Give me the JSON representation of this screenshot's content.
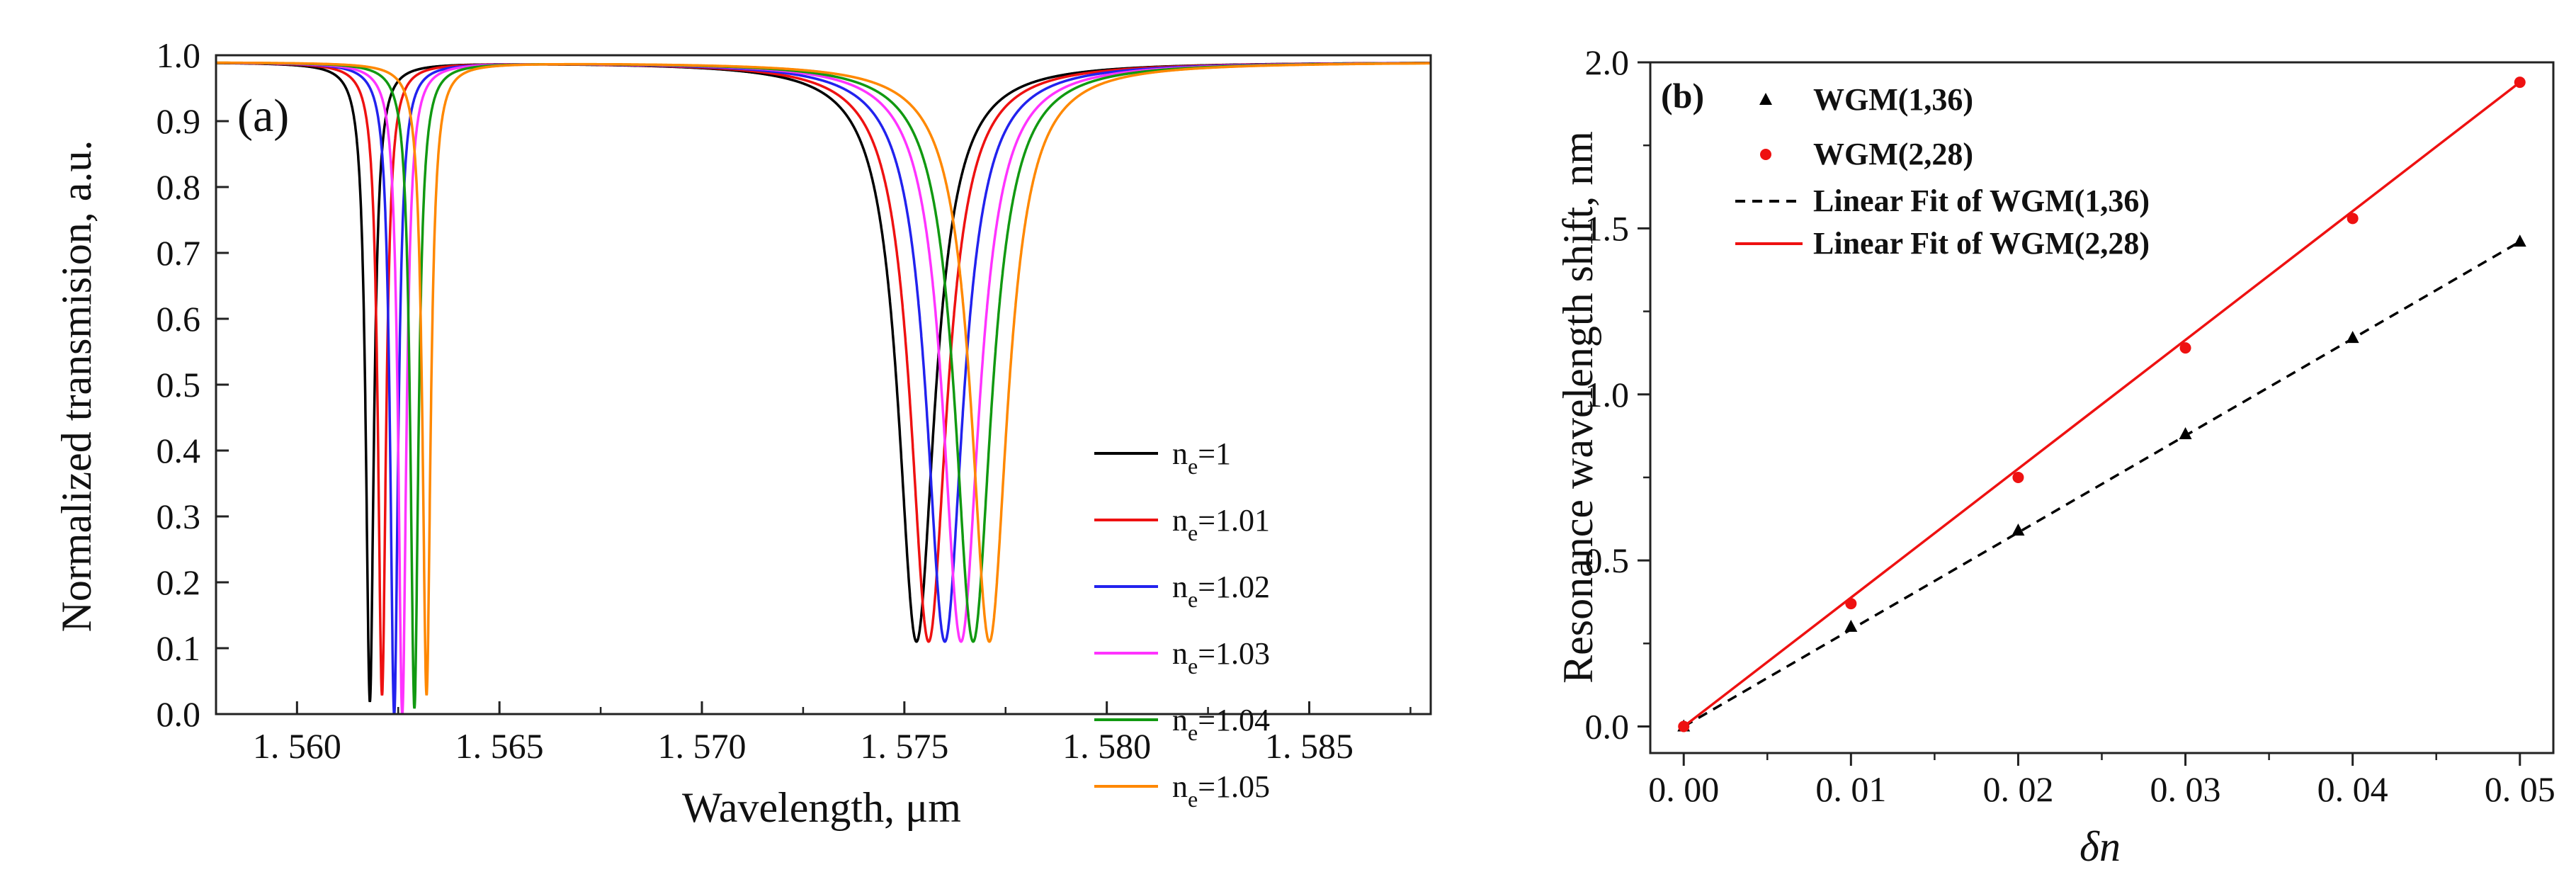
{
  "chart_data": [
    {
      "type": "line",
      "panel_label": "(a)",
      "xlabel": "Wavelength,   μm",
      "ylabel": "Normalized transmision, a.u.",
      "xlim": [
        1.558,
        1.588
      ],
      "ylim": [
        0.0,
        1.0
      ],
      "x_ticks": [
        {
          "value": 1.56,
          "label": "1. 560"
        },
        {
          "value": 1.565,
          "label": "1. 565"
        },
        {
          "value": 1.57,
          "label": "1. 570"
        },
        {
          "value": 1.575,
          "label": "1. 575"
        },
        {
          "value": 1.58,
          "label": "1. 580"
        },
        {
          "value": 1.585,
          "label": "1. 585"
        }
      ],
      "y_ticks": [
        {
          "value": 0.0,
          "label": "0.0"
        },
        {
          "value": 0.1,
          "label": "0.1"
        },
        {
          "value": 0.2,
          "label": "0.2"
        },
        {
          "value": 0.3,
          "label": "0.3"
        },
        {
          "value": 0.4,
          "label": "0.4"
        },
        {
          "value": 0.5,
          "label": "0.5"
        },
        {
          "value": 0.6,
          "label": "0.6"
        },
        {
          "value": 0.7,
          "label": "0.7"
        },
        {
          "value": 0.8,
          "label": "0.8"
        },
        {
          "value": 0.9,
          "label": "0.9"
        },
        {
          "value": 1.0,
          "label": "1.0"
        }
      ],
      "legend_position": "right-middle",
      "series": [
        {
          "label_base": "n",
          "label_sub": "e",
          "label_rest": "=1",
          "color": "#000000",
          "dips": [
            {
              "center": 1.5618,
              "hwhm": 0.00012,
              "min": 0.02
            },
            {
              "center": 1.5753,
              "hwhm": 0.00055,
              "min": 0.11
            }
          ]
        },
        {
          "label_base": "n",
          "label_sub": "e",
          "label_rest": "=1.01",
          "color": "#ee1111",
          "dips": [
            {
              "center": 1.5621,
              "hwhm": 0.00012,
              "min": 0.03
            },
            {
              "center": 1.5756,
              "hwhm": 0.00055,
              "min": 0.11
            }
          ]
        },
        {
          "label_base": "n",
          "label_sub": "e",
          "label_rest": "=1.02",
          "color": "#2222ee",
          "dips": [
            {
              "center": 1.5624,
              "hwhm": 0.00012,
              "min": 0.0
            },
            {
              "center": 1.576,
              "hwhm": 0.00055,
              "min": 0.11
            }
          ]
        },
        {
          "label_base": "n",
          "label_sub": "e",
          "label_rest": "=1.03",
          "color": "#ff33ff",
          "dips": [
            {
              "center": 1.5626,
              "hwhm": 0.00012,
              "min": 0.0
            },
            {
              "center": 1.5764,
              "hwhm": 0.00055,
              "min": 0.11
            }
          ]
        },
        {
          "label_base": "n",
          "label_sub": "e",
          "label_rest": "=1.04",
          "color": "#119911",
          "dips": [
            {
              "center": 1.5629,
              "hwhm": 0.00012,
              "min": 0.01
            },
            {
              "center": 1.5767,
              "hwhm": 0.00055,
              "min": 0.11
            }
          ]
        },
        {
          "label_base": "n",
          "label_sub": "e",
          "label_rest": "=1.05",
          "color": "#ff8800",
          "dips": [
            {
              "center": 1.5632,
              "hwhm": 0.00012,
              "min": 0.03
            },
            {
              "center": 1.5771,
              "hwhm": 0.00055,
              "min": 0.11
            }
          ]
        }
      ]
    },
    {
      "type": "scatter",
      "panel_label": "(b)",
      "xlabel": "δn",
      "ylabel": "Resonance wavelength shift, nm",
      "xlim": [
        -0.002,
        0.052
      ],
      "ylim": [
        -0.08,
        2.0
      ],
      "x_ticks": [
        {
          "value": 0.0,
          "label": "0. 00"
        },
        {
          "value": 0.01,
          "label": "0. 01"
        },
        {
          "value": 0.02,
          "label": "0. 02"
        },
        {
          "value": 0.03,
          "label": "0. 03"
        },
        {
          "value": 0.04,
          "label": "0. 04"
        },
        {
          "value": 0.05,
          "label": "0. 05"
        }
      ],
      "y_ticks": [
        {
          "value": 0.0,
          "label": "0.0"
        },
        {
          "value": 0.5,
          "label": "0.5"
        },
        {
          "value": 1.0,
          "label": "1.0"
        },
        {
          "value": 1.5,
          "label": "1.5"
        },
        {
          "value": 2.0,
          "label": "2.0"
        }
      ],
      "legend_position": "top-left",
      "series": [
        {
          "name": "WGM(1,36)",
          "marker": "triangle",
          "color": "#000000",
          "x": [
            0.0,
            0.01,
            0.02,
            0.03,
            0.04,
            0.05
          ],
          "y": [
            0.0,
            0.3,
            0.59,
            0.88,
            1.17,
            1.46
          ]
        },
        {
          "name": "WGM(2,28)",
          "marker": "circle",
          "color": "#ee1111",
          "x": [
            0.0,
            0.01,
            0.02,
            0.03,
            0.04,
            0.05
          ],
          "y": [
            0.0,
            0.37,
            0.75,
            1.14,
            1.53,
            1.94
          ]
        }
      ],
      "fits": [
        {
          "name": "Linear Fit of WGM(1,36)",
          "style": "dashed",
          "color": "#000000",
          "x": [
            0.0,
            0.05
          ],
          "y": [
            0.0,
            1.46
          ]
        },
        {
          "name": "Linear Fit of WGM(2,28)",
          "style": "solid",
          "color": "#ee1111",
          "x": [
            0.0,
            0.05
          ],
          "y": [
            0.0,
            1.94
          ]
        }
      ]
    }
  ]
}
